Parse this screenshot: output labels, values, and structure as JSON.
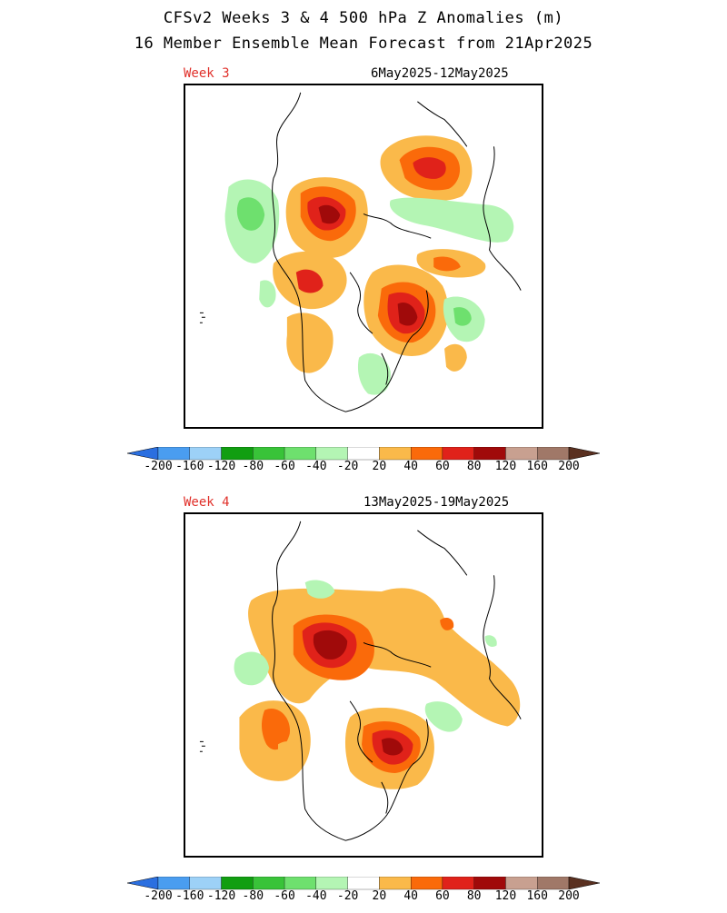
{
  "title": {
    "line1": "CFSv2 Weeks 3 & 4 500 hPa Z Anomalies (m)",
    "line2": "16 Member Ensemble Mean Forecast from 21Apr2025"
  },
  "panels": [
    {
      "label": "Week 3",
      "dates": "6May2025-12May2025"
    },
    {
      "label": "Week 4",
      "dates": "13May2025-19May2025"
    }
  ],
  "colorbar": {
    "ticks": [
      "-200",
      "-160",
      "-120",
      "-80",
      "-60",
      "-40",
      "-20",
      "20",
      "40",
      "60",
      "80",
      "120",
      "160",
      "200"
    ],
    "colors": [
      "#2b6fe0",
      "#4a9df0",
      "#9dd1f7",
      "#119e11",
      "#39c339",
      "#6ee06e",
      "#b4f5b4",
      "#ffffff",
      "#fab94a",
      "#fa6a0a",
      "#e0221a",
      "#a00a0a",
      "#c8a090",
      "#a07868",
      "#5a3020"
    ]
  }
}
